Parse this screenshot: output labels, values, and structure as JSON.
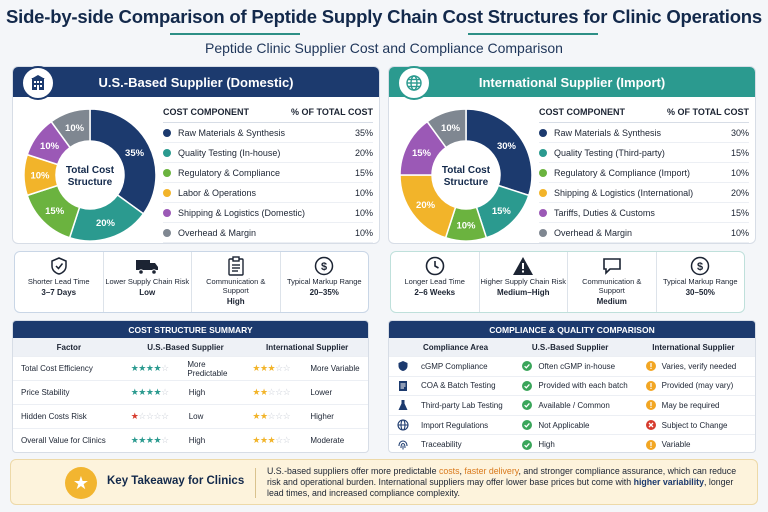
{
  "title": "Side-by-side Comparison of Peptide Supply Chain Cost Structures for Clinic Operations",
  "subtitle": "Peptide Clinic Supplier Cost and Compliance Comparison",
  "colors": {
    "navy": "#1c3a6e",
    "teal": "#2b9a8f",
    "green": "#6bb33f",
    "yellow": "#f2b42a",
    "purple": "#9b59b6",
    "gray": "#7f8791"
  },
  "us_panel": {
    "heading": "U.S.-Based Supplier (Domestic)",
    "icon": "building-icon",
    "center_text": [
      "Total Cost",
      "Structure"
    ],
    "col_component": "COST COMPONENT",
    "col_pct": "% OF TOTAL COST",
    "components": [
      {
        "label": "Raw Materials & Synthesis",
        "pct": "35%",
        "value": 35,
        "color": "#1c3a6e"
      },
      {
        "label": "Quality Testing (In-house)",
        "pct": "20%",
        "value": 20,
        "color": "#2b9a8f"
      },
      {
        "label": "Regulatory & Compliance",
        "pct": "15%",
        "value": 15,
        "color": "#6bb33f"
      },
      {
        "label": "Labor & Operations",
        "pct": "10%",
        "value": 10,
        "color": "#f2b42a"
      },
      {
        "label": "Shipping & Logistics (Domestic)",
        "pct": "10%",
        "value": 10,
        "color": "#9b59b6"
      },
      {
        "label": "Overhead & Margin",
        "pct": "10%",
        "value": 10,
        "color": "#7f8791"
      }
    ]
  },
  "intl_panel": {
    "heading": "International Supplier (Import)",
    "icon": "globe-icon",
    "center_text": [
      "Total Cost",
      "Structure"
    ],
    "col_component": "COST COMPONENT",
    "col_pct": "% OF TOTAL COST",
    "components": [
      {
        "label": "Raw Materials & Synthesis",
        "pct": "30%",
        "value": 30,
        "color": "#1c3a6e"
      },
      {
        "label": "Quality Testing (Third-party)",
        "pct": "15%",
        "value": 15,
        "color": "#2b9a8f"
      },
      {
        "label": "Regulatory & Compliance (Import)",
        "pct": "10%",
        "value": 10,
        "color": "#6bb33f"
      },
      {
        "label": "Shipping & Logistics (International)",
        "pct": "20%",
        "value": 20,
        "color": "#f2b42a"
      },
      {
        "label": "Tariffs, Duties & Customs",
        "pct": "15%",
        "value": 15,
        "color": "#9b59b6"
      },
      {
        "label": "Overhead & Margin",
        "pct": "10%",
        "value": 10,
        "color": "#7f8791"
      }
    ]
  },
  "us_metrics": [
    {
      "icon": "shield-icon",
      "caption": "Shorter Lead Time",
      "value": "3–7 Days"
    },
    {
      "icon": "truck-icon",
      "caption": "Lower Supply Chain Risk",
      "value": "Low"
    },
    {
      "icon": "clipboard-icon",
      "caption": "Communication & Support",
      "value": "High"
    },
    {
      "icon": "dollar-icon",
      "caption": "Typical Markup Range",
      "value": "20–35%"
    }
  ],
  "intl_metrics": [
    {
      "icon": "clock-icon",
      "caption": "Longer Lead Time",
      "value": "2–6 Weeks"
    },
    {
      "icon": "warning-icon",
      "caption": "Higher Supply Chain Risk",
      "value": "Medium–High"
    },
    {
      "icon": "chat-icon",
      "caption": "Communication & Support",
      "value": "Medium"
    },
    {
      "icon": "dollar-icon",
      "caption": "Typical Markup Range",
      "value": "30–50%"
    }
  ],
  "summary": {
    "heading": "COST STRUCTURE SUMMARY",
    "col_factor": "Factor",
    "col_us": "U.S.-Based Supplier",
    "col_intl": "International Supplier",
    "rows": [
      {
        "factor": "Total Cost Efficiency",
        "us_stars": 4,
        "us_color": "#2b9a8f",
        "us_value": "More Predictable",
        "intl_stars": 3,
        "intl_color": "#f2b42a",
        "intl_value": "More Variable"
      },
      {
        "factor": "Price Stability",
        "us_stars": 4,
        "us_color": "#2b9a8f",
        "us_value": "High",
        "intl_stars": 2,
        "intl_color": "#f2b42a",
        "intl_value": "Lower"
      },
      {
        "factor": "Hidden Costs Risk",
        "us_stars": 1,
        "us_color": "#d63b2e",
        "us_value": "Low",
        "intl_stars": 2,
        "intl_color": "#f2b42a",
        "intl_value": "Higher"
      },
      {
        "factor": "Overall Value for Clinics",
        "us_stars": 4,
        "us_color": "#2b9a8f",
        "us_value": "High",
        "intl_stars": 3,
        "intl_color": "#f2b42a",
        "intl_value": "Moderate"
      }
    ]
  },
  "compliance": {
    "heading": "COMPLIANCE & QUALITY COMPARISON",
    "col_area": "Compliance Area",
    "col_us": "U.S.-Based Supplier",
    "col_intl": "International Supplier",
    "rows": [
      {
        "icon": "shield-icon",
        "area": "cGMP Compliance",
        "us": "Often cGMP in-house",
        "us_status": "ok",
        "intl": "Varies, verify needed",
        "intl_status": "warn"
      },
      {
        "icon": "document-icon",
        "area": "COA & Batch Testing",
        "us": "Provided with each batch",
        "us_status": "ok",
        "intl": "Provided (may vary)",
        "intl_status": "warn"
      },
      {
        "icon": "flask-icon",
        "area": "Third-party Lab Testing",
        "us": "Available / Common",
        "us_status": "ok",
        "intl": "May be required",
        "intl_status": "warn"
      },
      {
        "icon": "globe-icon",
        "area": "Import Regulations",
        "us": "Not Applicable",
        "us_status": "ok",
        "intl": "Subject to Change",
        "intl_status": "bad"
      },
      {
        "icon": "fingerprint-icon",
        "area": "Traceability",
        "us": "High",
        "us_status": "ok",
        "intl": "Variable",
        "intl_status": "warn"
      }
    ]
  },
  "takeaway": {
    "title": "Key Takeaway for Clinics",
    "t1": "U.S.-based suppliers offer more predictable ",
    "t2": "costs",
    "t3": ", ",
    "t4": "faster delivery",
    "t5": ", and stronger compliance assurance, which can reduce risk and operational burden. International suppliers may offer lower base prices but come with ",
    "t6": "higher variability",
    "t7": ", longer lead times, and increased compliance complexity."
  }
}
